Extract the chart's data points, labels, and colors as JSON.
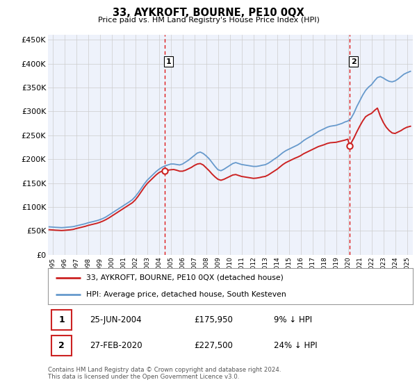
{
  "title": "33, AYKROFT, BOURNE, PE10 0QX",
  "subtitle": "Price paid vs. HM Land Registry's House Price Index (HPI)",
  "ylabel_ticks": [
    "£0",
    "£50K",
    "£100K",
    "£150K",
    "£200K",
    "£250K",
    "£300K",
    "£350K",
    "£400K",
    "£450K"
  ],
  "ytick_values": [
    0,
    50000,
    100000,
    150000,
    200000,
    250000,
    300000,
    350000,
    400000,
    450000
  ],
  "ylim": [
    0,
    460000
  ],
  "xlim_start": 1994.6,
  "xlim_end": 2025.5,
  "xtick_years": [
    1995,
    1996,
    1997,
    1998,
    1999,
    2000,
    2001,
    2002,
    2003,
    2004,
    2005,
    2006,
    2007,
    2008,
    2009,
    2010,
    2011,
    2012,
    2013,
    2014,
    2015,
    2016,
    2017,
    2018,
    2019,
    2020,
    2021,
    2022,
    2023,
    2024,
    2025
  ],
  "hpi_color": "#6699cc",
  "price_color": "#cc2222",
  "marker1_date": 2004.48,
  "marker1_label": "1",
  "marker1_price": 175950,
  "marker2_date": 2020.15,
  "marker2_label": "2",
  "marker2_price": 227500,
  "vline_color": "#dd0000",
  "plot_bg": "#eef2fb",
  "grid_color": "#cccccc",
  "legend_line1": "33, AYKROFT, BOURNE, PE10 0QX (detached house)",
  "legend_line2": "HPI: Average price, detached house, South Kesteven",
  "annotation1_date": "25-JUN-2004",
  "annotation1_price": "£175,950",
  "annotation1_hpi": "9% ↓ HPI",
  "annotation2_date": "27-FEB-2020",
  "annotation2_price": "£227,500",
  "annotation2_hpi": "24% ↓ HPI",
  "footer": "Contains HM Land Registry data © Crown copyright and database right 2024.\nThis data is licensed under the Open Government Licence v3.0.",
  "hpi_data": [
    [
      1994.7,
      58500
    ],
    [
      1995.0,
      58000
    ],
    [
      1995.25,
      57500
    ],
    [
      1995.5,
      57200
    ],
    [
      1995.75,
      56800
    ],
    [
      1996.0,
      57200
    ],
    [
      1996.25,
      57800
    ],
    [
      1996.5,
      58300
    ],
    [
      1996.75,
      59000
    ],
    [
      1997.0,
      60500
    ],
    [
      1997.25,
      62000
    ],
    [
      1997.5,
      63500
    ],
    [
      1997.75,
      65000
    ],
    [
      1998.0,
      67000
    ],
    [
      1998.25,
      68500
    ],
    [
      1998.5,
      70000
    ],
    [
      1998.75,
      71500
    ],
    [
      1999.0,
      73500
    ],
    [
      1999.25,
      76000
    ],
    [
      1999.5,
      79000
    ],
    [
      1999.75,
      83000
    ],
    [
      2000.0,
      87000
    ],
    [
      2000.25,
      91000
    ],
    [
      2000.5,
      95000
    ],
    [
      2000.75,
      99000
    ],
    [
      2001.0,
      103000
    ],
    [
      2001.25,
      107000
    ],
    [
      2001.5,
      111000
    ],
    [
      2001.75,
      115500
    ],
    [
      2002.0,
      122000
    ],
    [
      2002.25,
      130000
    ],
    [
      2002.5,
      139000
    ],
    [
      2002.75,
      148000
    ],
    [
      2003.0,
      156000
    ],
    [
      2003.25,
      162000
    ],
    [
      2003.5,
      168000
    ],
    [
      2003.75,
      174000
    ],
    [
      2004.0,
      179000
    ],
    [
      2004.25,
      183000
    ],
    [
      2004.5,
      186000
    ],
    [
      2004.75,
      188000
    ],
    [
      2005.0,
      190000
    ],
    [
      2005.25,
      190000
    ],
    [
      2005.5,
      189000
    ],
    [
      2005.75,
      188000
    ],
    [
      2006.0,
      190000
    ],
    [
      2006.25,
      194000
    ],
    [
      2006.5,
      198000
    ],
    [
      2006.75,
      203000
    ],
    [
      2007.0,
      208000
    ],
    [
      2007.25,
      213000
    ],
    [
      2007.5,
      215000
    ],
    [
      2007.75,
      212000
    ],
    [
      2008.0,
      207000
    ],
    [
      2008.25,
      201000
    ],
    [
      2008.5,
      193000
    ],
    [
      2008.75,
      185000
    ],
    [
      2009.0,
      178000
    ],
    [
      2009.25,
      176000
    ],
    [
      2009.5,
      179000
    ],
    [
      2009.75,
      183000
    ],
    [
      2010.0,
      187000
    ],
    [
      2010.25,
      191000
    ],
    [
      2010.5,
      193000
    ],
    [
      2010.75,
      191000
    ],
    [
      2011.0,
      189000
    ],
    [
      2011.25,
      188000
    ],
    [
      2011.5,
      187000
    ],
    [
      2011.75,
      186000
    ],
    [
      2012.0,
      185000
    ],
    [
      2012.25,
      185000
    ],
    [
      2012.5,
      186000
    ],
    [
      2012.75,
      187500
    ],
    [
      2013.0,
      188500
    ],
    [
      2013.25,
      191500
    ],
    [
      2013.5,
      195500
    ],
    [
      2013.75,
      200000
    ],
    [
      2014.0,
      204000
    ],
    [
      2014.25,
      209000
    ],
    [
      2014.5,
      214000
    ],
    [
      2014.75,
      218000
    ],
    [
      2015.0,
      221000
    ],
    [
      2015.25,
      224000
    ],
    [
      2015.5,
      227000
    ],
    [
      2015.75,
      230000
    ],
    [
      2016.0,
      234000
    ],
    [
      2016.25,
      239000
    ],
    [
      2016.5,
      243000
    ],
    [
      2016.75,
      246500
    ],
    [
      2017.0,
      250000
    ],
    [
      2017.25,
      254000
    ],
    [
      2017.5,
      258000
    ],
    [
      2017.75,
      261000
    ],
    [
      2018.0,
      264000
    ],
    [
      2018.25,
      267000
    ],
    [
      2018.5,
      269000
    ],
    [
      2018.75,
      270000
    ],
    [
      2019.0,
      271000
    ],
    [
      2019.25,
      273000
    ],
    [
      2019.5,
      275000
    ],
    [
      2019.75,
      278000
    ],
    [
      2020.0,
      280000
    ],
    [
      2020.25,
      285000
    ],
    [
      2020.5,
      296000
    ],
    [
      2020.75,
      310000
    ],
    [
      2021.0,
      322000
    ],
    [
      2021.25,
      334000
    ],
    [
      2021.5,
      344000
    ],
    [
      2021.75,
      351000
    ],
    [
      2022.0,
      356000
    ],
    [
      2022.25,
      364000
    ],
    [
      2022.5,
      371000
    ],
    [
      2022.75,
      373000
    ],
    [
      2023.0,
      370000
    ],
    [
      2023.25,
      366000
    ],
    [
      2023.5,
      363000
    ],
    [
      2023.75,
      362000
    ],
    [
      2024.0,
      364000
    ],
    [
      2024.25,
      368000
    ],
    [
      2024.5,
      373000
    ],
    [
      2024.75,
      378000
    ],
    [
      2025.0,
      381000
    ],
    [
      2025.3,
      384000
    ]
  ],
  "price_data": [
    [
      1994.7,
      52500
    ],
    [
      1995.0,
      52000
    ],
    [
      1995.25,
      51500
    ],
    [
      1995.5,
      51200
    ],
    [
      1995.75,
      50800
    ],
    [
      1996.0,
      51200
    ],
    [
      1996.25,
      51800
    ],
    [
      1996.5,
      52300
    ],
    [
      1996.75,
      53200
    ],
    [
      1997.0,
      55000
    ],
    [
      1997.25,
      56500
    ],
    [
      1997.5,
      58000
    ],
    [
      1997.75,
      59500
    ],
    [
      1998.0,
      61500
    ],
    [
      1998.25,
      63000
    ],
    [
      1998.5,
      64500
    ],
    [
      1998.75,
      66000
    ],
    [
      1999.0,
      68000
    ],
    [
      1999.25,
      70500
    ],
    [
      1999.5,
      73500
    ],
    [
      1999.75,
      77000
    ],
    [
      2000.0,
      81000
    ],
    [
      2000.25,
      85000
    ],
    [
      2000.5,
      89000
    ],
    [
      2000.75,
      93000
    ],
    [
      2001.0,
      97000
    ],
    [
      2001.25,
      101000
    ],
    [
      2001.5,
      105000
    ],
    [
      2001.75,
      109000
    ],
    [
      2002.0,
      115000
    ],
    [
      2002.25,
      123000
    ],
    [
      2002.5,
      132000
    ],
    [
      2002.75,
      141000
    ],
    [
      2003.0,
      149000
    ],
    [
      2003.25,
      155000
    ],
    [
      2003.5,
      161000
    ],
    [
      2003.75,
      167000
    ],
    [
      2004.0,
      172000
    ],
    [
      2004.25,
      175000
    ],
    [
      2004.48,
      175950
    ],
    [
      2004.75,
      177000
    ],
    [
      2005.0,
      178000
    ],
    [
      2005.25,
      178500
    ],
    [
      2005.5,
      177000
    ],
    [
      2005.75,
      175000
    ],
    [
      2006.0,
      175000
    ],
    [
      2006.25,
      177000
    ],
    [
      2006.5,
      180000
    ],
    [
      2006.75,
      183000
    ],
    [
      2007.0,
      187000
    ],
    [
      2007.25,
      190000
    ],
    [
      2007.5,
      191000
    ],
    [
      2007.75,
      188000
    ],
    [
      2008.0,
      182000
    ],
    [
      2008.25,
      176000
    ],
    [
      2008.5,
      169000
    ],
    [
      2008.75,
      163000
    ],
    [
      2009.0,
      158000
    ],
    [
      2009.25,
      156000
    ],
    [
      2009.5,
      158000
    ],
    [
      2009.75,
      161000
    ],
    [
      2010.0,
      164000
    ],
    [
      2010.25,
      167000
    ],
    [
      2010.5,
      168000
    ],
    [
      2010.75,
      166000
    ],
    [
      2011.0,
      164000
    ],
    [
      2011.25,
      163000
    ],
    [
      2011.5,
      162000
    ],
    [
      2011.75,
      161000
    ],
    [
      2012.0,
      160000
    ],
    [
      2012.25,
      160500
    ],
    [
      2012.5,
      161500
    ],
    [
      2012.75,
      163000
    ],
    [
      2013.0,
      164000
    ],
    [
      2013.25,
      167000
    ],
    [
      2013.5,
      171000
    ],
    [
      2013.75,
      175000
    ],
    [
      2014.0,
      179000
    ],
    [
      2014.25,
      184000
    ],
    [
      2014.5,
      189000
    ],
    [
      2014.75,
      193000
    ],
    [
      2015.0,
      196000
    ],
    [
      2015.25,
      199000
    ],
    [
      2015.5,
      202000
    ],
    [
      2015.75,
      204500
    ],
    [
      2016.0,
      207500
    ],
    [
      2016.25,
      211500
    ],
    [
      2016.5,
      214500
    ],
    [
      2016.75,
      217500
    ],
    [
      2017.0,
      220500
    ],
    [
      2017.25,
      223500
    ],
    [
      2017.5,
      226500
    ],
    [
      2017.75,
      228500
    ],
    [
      2018.0,
      230500
    ],
    [
      2018.25,
      233000
    ],
    [
      2018.5,
      234500
    ],
    [
      2018.75,
      235000
    ],
    [
      2019.0,
      235500
    ],
    [
      2019.25,
      237000
    ],
    [
      2019.5,
      238500
    ],
    [
      2019.75,
      240000
    ],
    [
      2020.0,
      242000
    ],
    [
      2020.15,
      227500
    ],
    [
      2020.25,
      233000
    ],
    [
      2020.5,
      244000
    ],
    [
      2020.75,
      257000
    ],
    [
      2021.0,
      269000
    ],
    [
      2021.25,
      280000
    ],
    [
      2021.5,
      289000
    ],
    [
      2021.75,
      293000
    ],
    [
      2022.0,
      296000
    ],
    [
      2022.25,
      302000
    ],
    [
      2022.5,
      307000
    ],
    [
      2022.75,
      290000
    ],
    [
      2023.0,
      277000
    ],
    [
      2023.25,
      267000
    ],
    [
      2023.5,
      260000
    ],
    [
      2023.75,
      255000
    ],
    [
      2024.0,
      254000
    ],
    [
      2024.25,
      257000
    ],
    [
      2024.5,
      260000
    ],
    [
      2024.75,
      264000
    ],
    [
      2025.0,
      267000
    ],
    [
      2025.3,
      269000
    ]
  ]
}
